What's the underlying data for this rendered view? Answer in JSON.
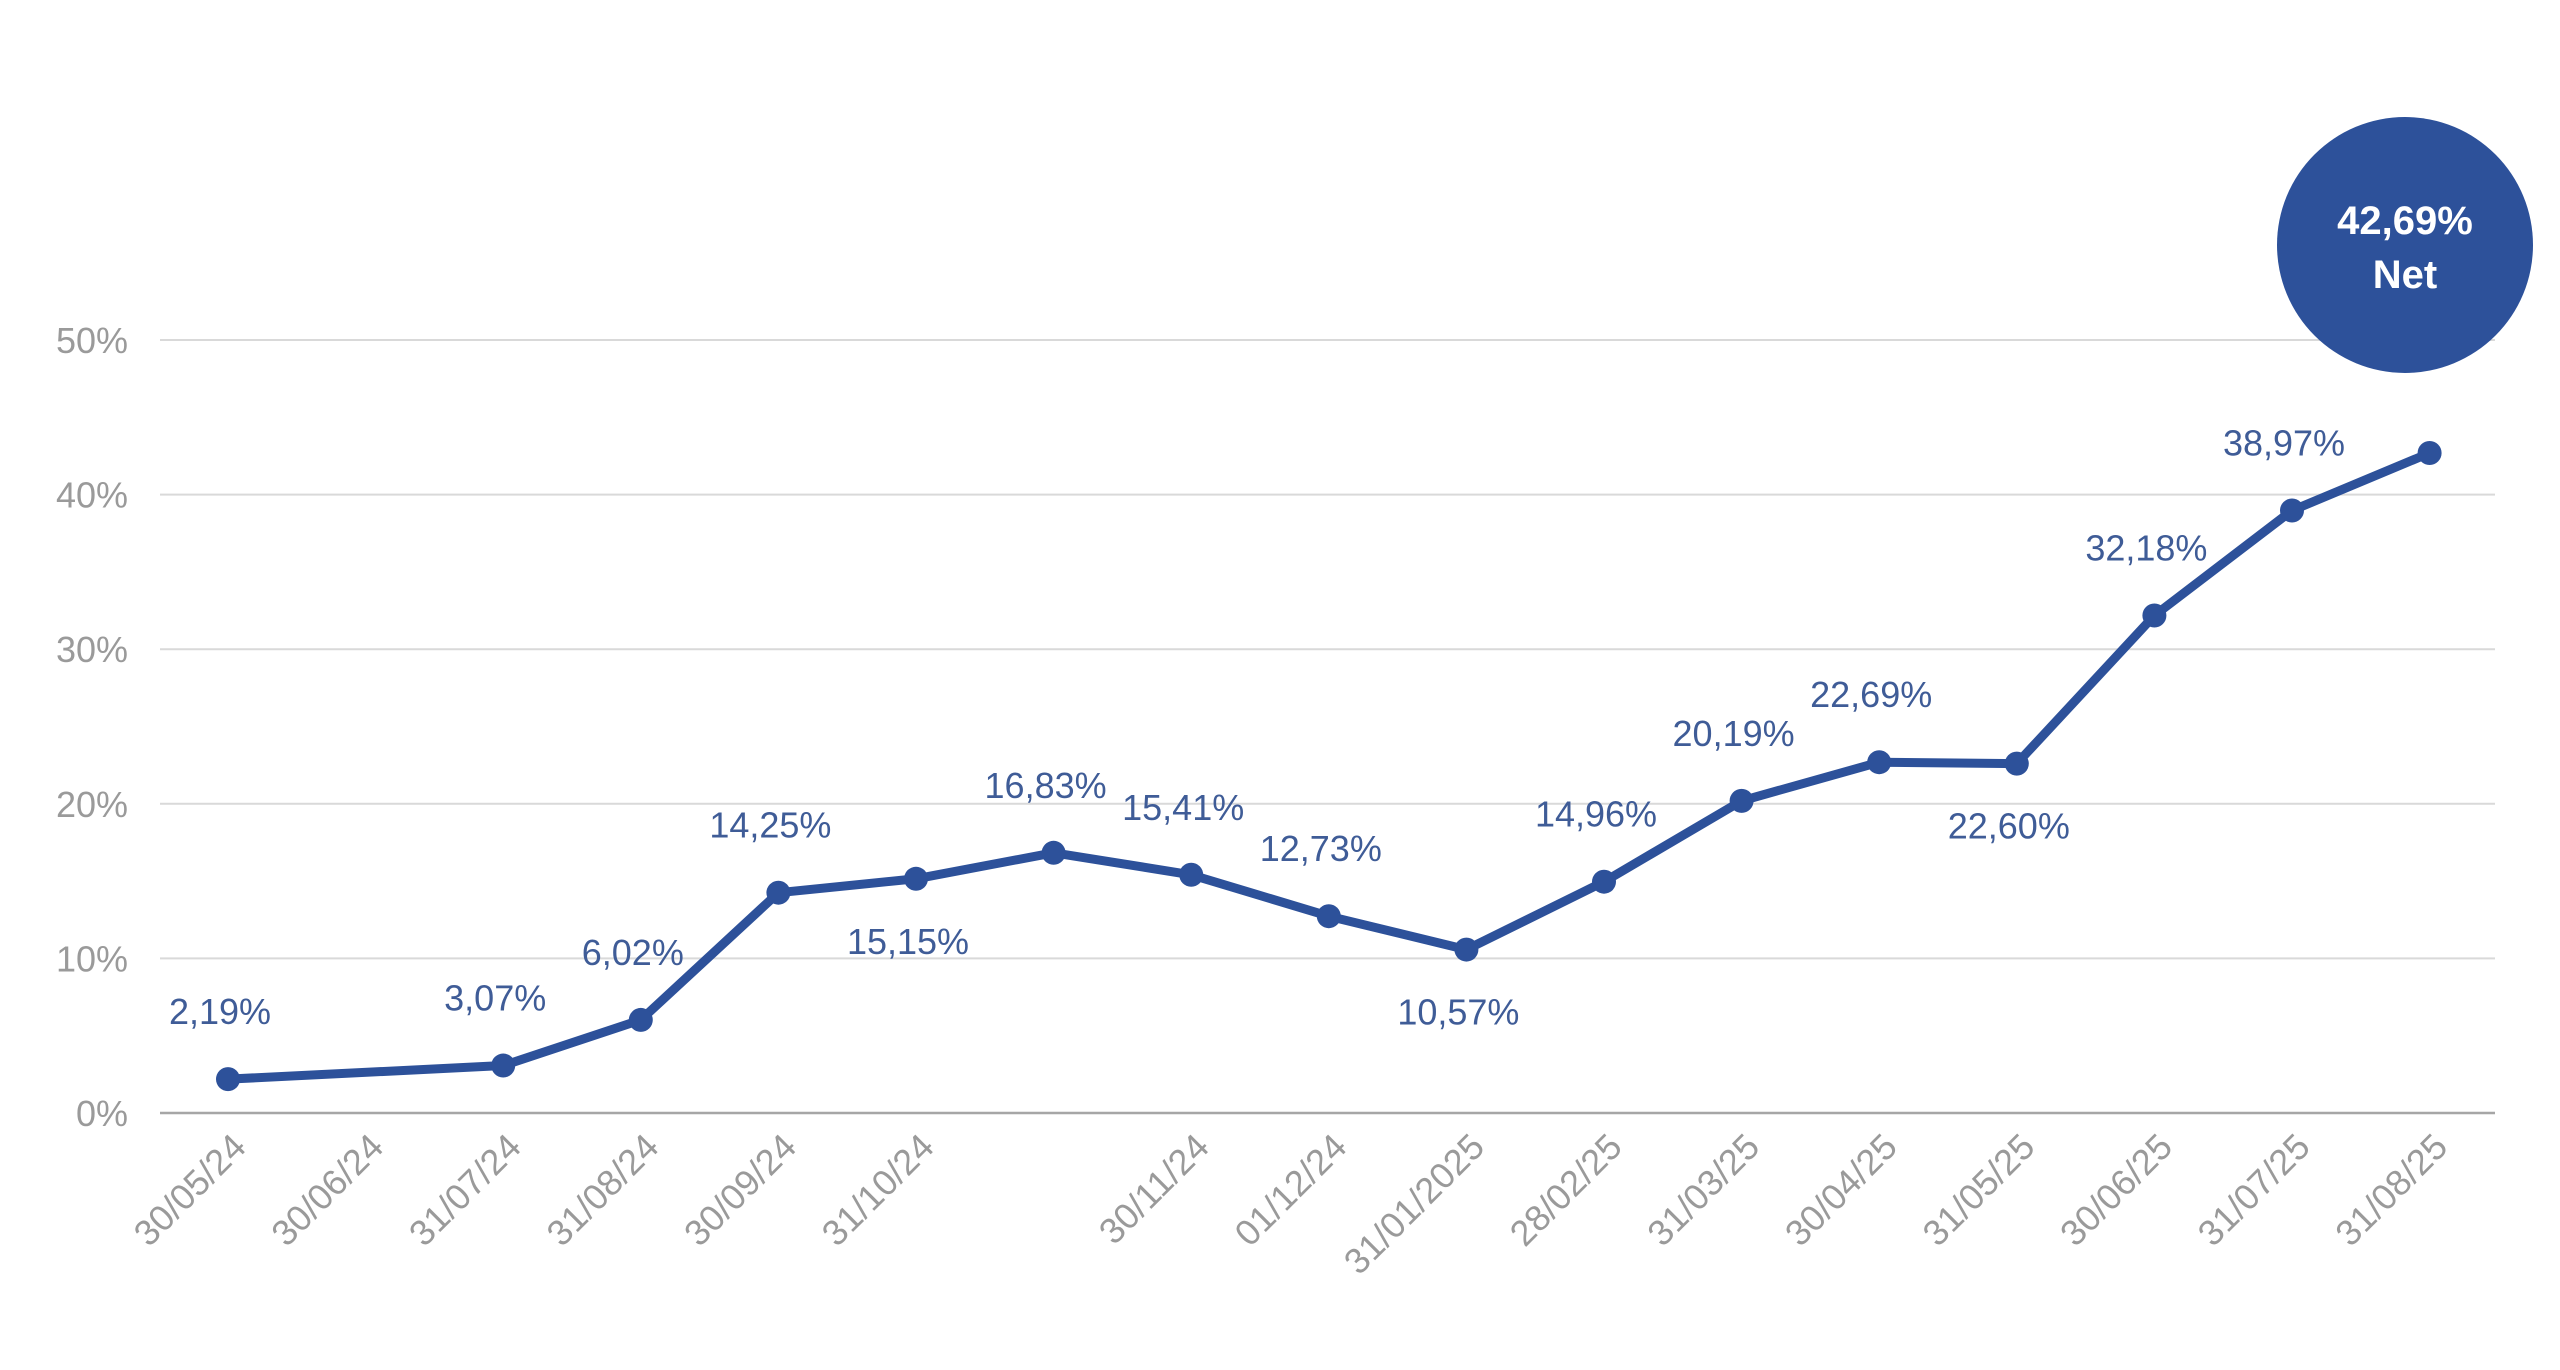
{
  "chart_data": {
    "type": "line",
    "x_tick_labels": [
      "30/05/24",
      "30/06/24",
      "31/07/24",
      "31/08/24",
      "30/09/24",
      "31/10/24",
      "30/11/24",
      "01/12/24",
      "31/01/2025",
      "28/02/25",
      "31/03/25",
      "30/04/25",
      "31/05/25",
      "30/06/25",
      "31/07/25",
      "31/08/25"
    ],
    "y_tick_labels": [
      "0%",
      "10%",
      "20%",
      "30%",
      "40%",
      "50%"
    ],
    "ylim": [
      0,
      50
    ],
    "grid": true,
    "series": [
      {
        "color": "#2d519a",
        "points": [
          {
            "slot": 0,
            "value": 2.19,
            "label": "2,19%",
            "label_pos": "above"
          },
          {
            "slot": 2,
            "value": 3.07,
            "label": "3,07%",
            "label_pos": "above"
          },
          {
            "slot": 3,
            "value": 6.02,
            "label": "6,02%",
            "label_pos": "above"
          },
          {
            "slot": 4,
            "value": 14.25,
            "label": "14,25%",
            "label_pos": "above"
          },
          {
            "slot": 5,
            "value": 15.15,
            "label": "15,15%",
            "label_pos": "below"
          },
          {
            "slot": 6,
            "value": 16.83,
            "label": "16,83%",
            "label_pos": "above"
          },
          {
            "slot": 7,
            "value": 15.41,
            "label": "15,41%",
            "label_pos": "above"
          },
          {
            "slot": 8,
            "value": 12.73,
            "label": "12,73%",
            "label_pos": "above"
          },
          {
            "slot": 9,
            "value": 10.57,
            "label": "10,57%",
            "label_pos": "below"
          },
          {
            "slot": 10,
            "value": 14.96,
            "label": "14,96%",
            "label_pos": "above"
          },
          {
            "slot": 11,
            "value": 20.19,
            "label": "20,19%",
            "label_pos": "above"
          },
          {
            "slot": 12,
            "value": 22.69,
            "label": "22,69%",
            "label_pos": "above"
          },
          {
            "slot": 13,
            "value": 22.6,
            "label": "22,60%",
            "label_pos": "below"
          },
          {
            "slot": 14,
            "value": 32.18,
            "label": "32,18%",
            "label_pos": "above"
          },
          {
            "slot": 15,
            "value": 38.97,
            "label": "38,97%",
            "label_pos": "above"
          },
          {
            "slot": 16,
            "value": 42.69,
            "label": "",
            "label_pos": "none"
          }
        ]
      }
    ],
    "x_tick_slots": [
      0,
      1,
      2,
      3,
      4,
      5,
      7,
      8,
      9,
      10,
      11,
      12,
      13,
      14,
      15,
      16
    ],
    "badge": {
      "value": "42,69%",
      "label": "Net",
      "color": "#2d519a"
    },
    "colors": {
      "grid": "#d9d9d9",
      "axis": "#a6a6a6",
      "tick_text": "#9a9a9a",
      "data_label": "#3f5c97"
    }
  }
}
